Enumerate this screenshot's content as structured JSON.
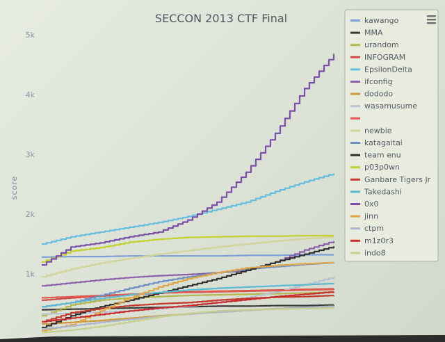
{
  "chart_data": {
    "type": "line",
    "title": "SECCON 2013 CTF Final",
    "ylabel": "score",
    "xlabel": "",
    "ylim": [
      0,
      5000
    ],
    "yticks": [
      "1k",
      "2k",
      "3k",
      "4k",
      "5k"
    ],
    "ytick_values": [
      1000,
      2000,
      3000,
      4000,
      5000
    ],
    "grid": false,
    "legend_placement": "right",
    "x": [
      0,
      1,
      2,
      3,
      4,
      5,
      6,
      7,
      8,
      9,
      10
    ],
    "series": [
      {
        "name": "kawango",
        "color": "#7c9fd6",
        "values": [
          1280,
          1290,
          1290,
          1300,
          1300,
          1300,
          1300,
          1310,
          1310,
          1320,
          1320
        ]
      },
      {
        "name": "MMA",
        "color": "#3a3a3a",
        "values": [
          400,
          410,
          420,
          430,
          440,
          450,
          460,
          460,
          470,
          470,
          480
        ]
      },
      {
        "name": "urandom",
        "color": "#b6b64e",
        "values": [
          300,
          480,
          560,
          600,
          620,
          640,
          650,
          660,
          670,
          680,
          700
        ]
      },
      {
        "name": "INFOGRAM",
        "color": "#d24a44",
        "values": [
          560,
          600,
          630,
          650,
          680,
          700,
          710,
          720,
          730,
          740,
          750
        ]
      },
      {
        "name": "EpsilonDelta",
        "color": "#65bde0",
        "values": [
          1500,
          1620,
          1700,
          1780,
          1860,
          1960,
          2080,
          2200,
          2380,
          2540,
          2680
        ]
      },
      {
        "name": "ifconfig",
        "color": "#8c5fa8",
        "values": [
          800,
          850,
          900,
          940,
          970,
          990,
          1020,
          1060,
          1200,
          1400,
          1550
        ]
      },
      {
        "name": "dododo",
        "color": "#cf9a3c",
        "values": [
          160,
          190,
          220,
          260,
          300,
          330,
          360,
          390,
          420,
          440,
          460
        ]
      },
      {
        "name": "wasamusume",
        "color": "#b8c2d6",
        "values": [
          330,
          340,
          360,
          380,
          420,
          460,
          520,
          600,
          700,
          820,
          950
        ]
      },
      {
        "name": "",
        "color": "#e05a52",
        "values": [
          600,
          620,
          640,
          660,
          680,
          690,
          700,
          710,
          720,
          730,
          740
        ]
      },
      {
        "name": "newbie",
        "color": "#d2d49a",
        "values": [
          950,
          1080,
          1180,
          1260,
          1330,
          1390,
          1450,
          1500,
          1550,
          1590,
          1620
        ]
      },
      {
        "name": "katagaitai",
        "color": "#6e8fc4",
        "values": [
          450,
          520,
          640,
          760,
          870,
          950,
          1020,
          1080,
          1120,
          1160,
          1190
        ]
      },
      {
        "name": "team enu",
        "color": "#2f2f2f",
        "values": [
          100,
          300,
          450,
          560,
          680,
          800,
          920,
          1060,
          1200,
          1330,
          1460
        ]
      },
      {
        "name": "p03p0wn",
        "color": "#c4d02c",
        "values": [
          1200,
          1380,
          1440,
          1530,
          1580,
          1610,
          1620,
          1630,
          1630,
          1640,
          1640
        ]
      },
      {
        "name": "Ganbare Tigers Jr",
        "color": "#c33a2c",
        "values": [
          200,
          350,
          420,
          470,
          500,
          520,
          560,
          590,
          610,
          620,
          640
        ]
      },
      {
        "name": "Takedashi",
        "color": "#5fb8d2",
        "values": [
          450,
          520,
          590,
          650,
          690,
          730,
          760,
          780,
          800,
          820,
          840
        ]
      },
      {
        "name": "0x0",
        "color": "#7b4ea8",
        "values": [
          1150,
          1450,
          1520,
          1620,
          1700,
          1900,
          2200,
          2700,
          3350,
          4100,
          4680
        ]
      },
      {
        "name": "jinn",
        "color": "#e0a64a",
        "values": [
          50,
          150,
          380,
          600,
          780,
          920,
          1020,
          1100,
          1140,
          1170,
          1190
        ]
      },
      {
        "name": "ctpm",
        "color": "#a9b6cc",
        "values": [
          80,
          130,
          190,
          240,
          290,
          330,
          360,
          390,
          420,
          440,
          460
        ]
      },
      {
        "name": "m1z0r3",
        "color": "#c92e2e",
        "values": [
          200,
          260,
          320,
          380,
          430,
          470,
          520,
          570,
          620,
          660,
          700
        ]
      },
      {
        "name": "indo8",
        "color": "#c6d08e",
        "values": [
          20,
          60,
          120,
          200,
          280,
          340,
          380,
          400,
          410,
          420,
          430
        ]
      }
    ]
  },
  "ui": {
    "menu_icon": "hamburger-menu-icon",
    "legend_swatch_color_fallback": "#999999"
  }
}
